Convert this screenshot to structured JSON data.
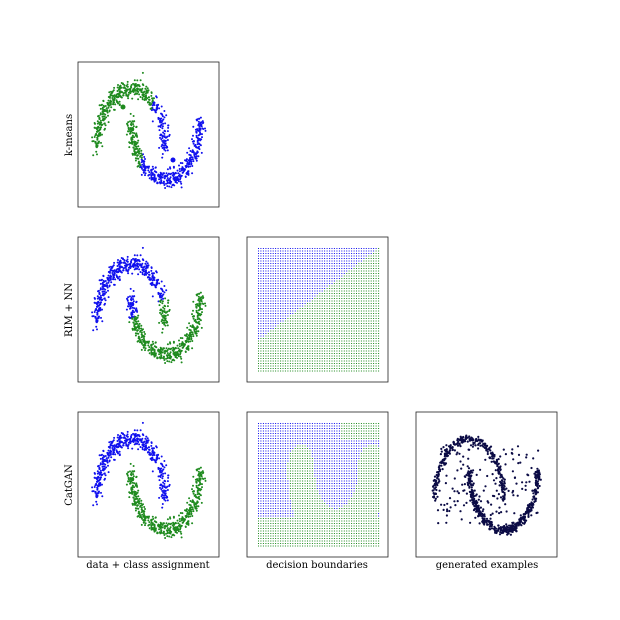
{
  "rows": [
    {
      "label": "k-means"
    },
    {
      "label": "RIM + NN"
    },
    {
      "label": "CatGAN"
    }
  ],
  "columns": [
    "data + class assignment",
    "decision boundaries",
    "generated examples"
  ]
}
